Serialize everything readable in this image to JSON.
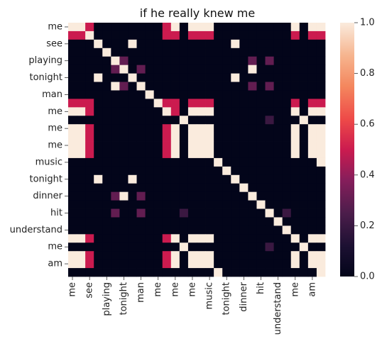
{
  "chart_data": {
    "type": "heatmap",
    "title": "if he really knew me",
    "row_tick_labels": [
      "me",
      "see",
      "playing",
      "tonight",
      "man",
      "me",
      "me",
      "me",
      "music",
      "tonight",
      "dinner",
      "hit",
      "understand",
      "me",
      "am"
    ],
    "col_tick_labels": [
      "me",
      "see",
      "playing",
      "tonight",
      "man",
      "me",
      "me",
      "me",
      "music",
      "tonight",
      "dinner",
      "hit",
      "understand",
      "me",
      "am"
    ],
    "tick_every": 2,
    "n_rows": 30,
    "n_cols": 30,
    "colorbar": {
      "min": 0.0,
      "max": 1.0,
      "ticks": [
        "0.0",
        "0.2",
        "0.4",
        "0.6",
        "0.8",
        "1.0"
      ]
    },
    "values": [
      [
        1,
        1,
        0.5,
        0,
        0,
        0,
        0,
        0,
        0,
        0,
        0,
        0.5,
        1,
        0,
        1,
        1,
        1,
        0,
        0,
        0,
        0,
        0,
        0,
        0,
        0,
        0,
        1,
        0,
        1,
        1
      ],
      [
        0.5,
        0.5,
        1,
        0,
        0,
        0,
        0,
        0,
        0,
        0,
        0,
        0.5,
        0.5,
        0,
        0.5,
        0.5,
        0.5,
        0,
        0,
        0,
        0,
        0,
        0,
        0,
        0,
        0,
        0.5,
        0,
        0.5,
        0.5
      ],
      [
        0,
        0,
        0,
        1,
        0,
        0,
        0,
        1,
        0,
        0,
        0,
        0,
        0,
        0,
        0,
        0,
        0,
        0,
        0,
        1,
        0,
        0,
        0,
        0,
        0,
        0,
        0,
        0,
        0,
        0
      ],
      [
        0,
        0,
        0,
        0,
        1,
        0,
        0,
        0,
        0,
        0,
        0,
        0,
        0,
        0,
        0,
        0,
        0,
        0,
        0,
        0,
        0,
        0,
        0,
        0,
        0,
        0,
        0,
        0,
        0,
        0
      ],
      [
        0,
        0,
        0,
        0,
        0,
        1,
        0.3,
        0,
        0,
        0,
        0,
        0,
        0,
        0,
        0,
        0,
        0,
        0,
        0,
        0,
        0,
        0.3,
        0,
        0.3,
        0,
        0,
        0,
        0,
        0,
        0
      ],
      [
        0,
        0,
        0,
        0,
        0,
        0.3,
        1,
        0,
        0.3,
        0,
        0,
        0,
        0,
        0,
        0,
        0,
        0,
        0,
        0,
        0,
        0,
        1,
        0,
        0,
        0,
        0,
        0,
        0,
        0,
        0
      ],
      [
        0,
        0,
        0,
        1,
        0,
        0,
        0,
        1,
        0,
        0,
        0,
        0,
        0,
        0,
        0,
        0,
        0,
        0,
        0,
        1,
        0,
        0,
        0,
        0,
        0,
        0,
        0,
        0,
        0,
        0
      ],
      [
        0,
        0,
        0,
        0,
        0,
        1,
        0.3,
        0,
        1,
        0,
        0,
        0,
        0,
        0,
        0,
        0,
        0,
        0,
        0,
        0,
        0,
        0.3,
        0,
        0.3,
        0,
        0,
        0,
        0,
        0,
        0
      ],
      [
        0,
        0,
        0,
        0,
        0,
        0,
        0,
        0,
        0,
        1,
        0,
        0,
        0,
        0,
        0,
        0,
        0,
        0,
        0,
        0,
        0,
        0,
        0,
        0,
        0,
        0,
        0,
        0,
        0,
        0
      ],
      [
        0.5,
        0.5,
        0.5,
        0,
        0,
        0,
        0,
        0,
        0,
        0,
        1,
        0.5,
        0.5,
        0,
        0.5,
        0.5,
        0.5,
        0,
        0,
        0,
        0,
        0,
        0,
        0,
        0,
        0,
        0.5,
        0,
        0.5,
        0.5
      ],
      [
        1,
        1,
        0.5,
        0,
        0,
        0,
        0,
        0,
        0,
        0,
        0,
        1,
        0.5,
        0,
        1,
        1,
        1,
        0,
        0,
        0,
        0,
        0,
        0,
        0,
        0,
        0,
        1,
        0,
        1,
        1
      ],
      [
        0,
        0,
        0,
        0,
        0,
        0,
        0,
        0,
        0,
        0,
        0,
        0,
        0,
        1,
        0,
        0,
        0,
        0,
        0,
        0,
        0,
        0,
        0,
        0.2,
        0,
        0,
        0,
        1,
        0,
        0
      ],
      [
        1,
        1,
        0.5,
        0,
        0,
        0,
        0,
        0,
        0,
        0,
        0,
        0.5,
        1,
        0,
        1,
        1,
        1,
        0,
        0,
        0,
        0,
        0,
        0,
        0,
        0,
        0,
        1,
        0,
        1,
        1
      ],
      [
        1,
        1,
        0.5,
        0,
        0,
        0,
        0,
        0,
        0,
        0,
        0,
        0.5,
        1,
        0,
        1,
        1,
        1,
        0,
        0,
        0,
        0,
        0,
        0,
        0,
        0,
        0,
        1,
        0,
        1,
        1
      ],
      [
        1,
        1,
        0.5,
        0,
        0,
        0,
        0,
        0,
        0,
        0,
        0,
        0.5,
        1,
        0,
        1,
        1,
        1,
        0,
        0,
        0,
        0,
        0,
        0,
        0,
        0,
        0,
        1,
        0,
        1,
        1
      ],
      [
        1,
        1,
        0.5,
        0,
        0,
        0,
        0,
        0,
        0,
        0,
        0,
        0.5,
        1,
        0,
        1,
        1,
        1,
        0,
        0,
        0,
        0,
        0,
        0,
        0,
        0,
        0,
        1,
        0,
        1,
        1
      ],
      [
        0,
        0,
        0,
        0,
        0,
        0,
        0,
        0,
        0,
        0,
        0,
        0,
        0,
        0,
        0,
        0,
        0,
        1,
        0,
        0,
        0,
        0,
        0,
        0,
        0,
        0,
        0,
        0,
        0,
        1
      ],
      [
        0,
        0,
        0,
        0,
        0,
        0,
        0,
        0,
        0,
        0,
        0,
        0,
        0,
        0,
        0,
        0,
        0,
        0,
        1,
        0,
        0,
        0,
        0,
        0,
        0,
        0,
        0,
        0,
        0,
        0
      ],
      [
        0,
        0,
        0,
        1,
        0,
        0,
        0,
        1,
        0,
        0,
        0,
        0,
        0,
        0,
        0,
        0,
        0,
        0,
        0,
        1,
        0,
        0,
        0,
        0,
        0,
        0,
        0,
        0,
        0,
        0
      ],
      [
        0,
        0,
        0,
        0,
        0,
        0,
        0,
        0,
        0,
        0,
        0,
        0,
        0,
        0,
        0,
        0,
        0,
        0,
        0,
        0,
        1,
        0,
        0,
        0,
        0,
        0,
        0,
        0,
        0,
        0
      ],
      [
        0,
        0,
        0,
        0,
        0,
        0.3,
        1,
        0,
        0.3,
        0,
        0,
        0,
        0,
        0,
        0,
        0,
        0,
        0,
        0,
        0,
        0,
        1,
        0,
        0,
        0,
        0,
        0,
        0,
        0,
        0
      ],
      [
        0,
        0,
        0,
        0,
        0,
        0,
        0,
        0,
        0,
        0,
        0,
        0,
        0,
        0,
        0,
        0,
        0,
        0,
        0,
        0,
        0,
        0,
        1,
        0,
        0,
        0,
        0,
        0,
        0,
        0
      ],
      [
        0,
        0,
        0,
        0,
        0,
        0.3,
        0,
        0,
        0.3,
        0,
        0,
        0,
        0,
        0.2,
        0,
        0,
        0,
        0,
        0,
        0,
        0,
        0,
        0,
        1,
        0,
        0.2,
        0,
        0,
        0,
        0
      ],
      [
        0,
        0,
        0,
        0,
        0,
        0,
        0,
        0,
        0,
        0,
        0,
        0,
        0,
        0,
        0,
        0,
        0,
        0,
        0,
        0,
        0,
        0,
        0,
        0,
        1,
        0,
        0,
        0,
        0,
        0
      ],
      [
        0,
        0,
        0,
        0,
        0,
        0,
        0,
        0,
        0,
        0,
        0,
        0,
        0,
        0,
        0,
        0,
        0,
        0,
        0,
        0,
        0,
        0,
        0,
        0,
        0,
        1,
        0,
        0,
        0,
        0
      ],
      [
        1,
        1,
        0.5,
        0,
        0,
        0,
        0,
        0,
        0,
        0,
        0,
        0.5,
        1,
        0,
        1,
        1,
        1,
        0,
        0,
        0,
        0,
        0,
        0,
        0,
        0,
        0,
        1,
        0,
        1,
        1
      ],
      [
        0,
        0,
        0,
        0,
        0,
        0,
        0,
        0,
        0,
        0,
        0,
        0,
        0,
        1,
        0,
        0,
        0,
        0,
        0,
        0,
        0,
        0,
        0,
        0.2,
        0,
        0,
        0,
        1,
        0,
        0
      ],
      [
        1,
        1,
        0.5,
        0,
        0,
        0,
        0,
        0,
        0,
        0,
        0,
        0.5,
        1,
        0,
        1,
        1,
        1,
        0,
        0,
        0,
        0,
        0,
        0,
        0,
        0,
        0,
        1,
        0,
        1,
        1
      ],
      [
        1,
        1,
        0.5,
        0,
        0,
        0,
        0,
        0,
        0,
        0,
        0,
        0.5,
        1,
        0,
        1,
        1,
        1,
        0,
        0,
        0,
        0,
        0,
        0,
        0,
        0,
        0,
        1,
        0,
        1,
        1
      ],
      [
        0,
        0,
        0,
        0,
        0,
        0,
        0,
        0,
        0,
        0,
        0,
        0,
        0,
        0,
        0,
        0,
        0,
        1,
        0,
        0,
        0,
        0,
        0,
        0,
        0,
        0,
        0,
        0,
        0,
        1
      ]
    ]
  }
}
